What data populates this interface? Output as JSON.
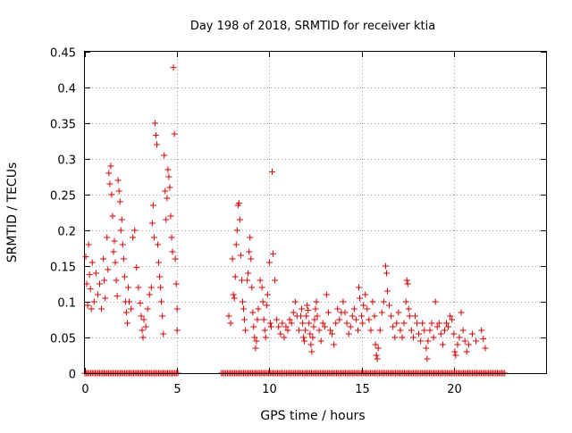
{
  "chart_data": {
    "type": "scatter",
    "title": "Day 198 of 2018, SRMTID for receiver ktia",
    "xlabel": "GPS time / hours",
    "ylabel": "SRMTID / TECUs",
    "xlim": [
      0,
      25
    ],
    "ylim": [
      0,
      0.45
    ],
    "xticks": [
      0,
      5,
      10,
      15,
      20
    ],
    "xtick_labels": [
      "0",
      "5",
      "10",
      "15",
      "20"
    ],
    "yticks": [
      0,
      0.05,
      0.1,
      0.15,
      0.2,
      0.25,
      0.3,
      0.35,
      0.4,
      0.45
    ],
    "ytick_labels": [
      "0",
      "0.05",
      "0.1",
      "0.15",
      "0.2",
      "0.25",
      "0.3",
      "0.35",
      "0.4",
      "0.45"
    ],
    "grid": true,
    "marker": "+",
    "color": "#dd0000",
    "series": [
      {
        "name": "SRMTID",
        "points": [
          [
            0.05,
            0.163
          ],
          [
            0.1,
            0.125
          ],
          [
            0.15,
            0.095
          ],
          [
            0.2,
            0.18
          ],
          [
            0.25,
            0.138
          ],
          [
            0.3,
            0.118
          ],
          [
            0.35,
            0.09
          ],
          [
            0.4,
            0.155
          ],
          [
            0.5,
            0.1
          ],
          [
            0.6,
            0.14
          ],
          [
            0.7,
            0.11
          ],
          [
            0.8,
            0.125
          ],
          [
            0.9,
            0.09
          ],
          [
            1.0,
            0.16
          ],
          [
            1.05,
            0.13
          ],
          [
            1.1,
            0.105
          ],
          [
            1.2,
            0.19
          ],
          [
            1.25,
            0.145
          ],
          [
            1.3,
            0.28
          ],
          [
            1.35,
            0.265
          ],
          [
            1.4,
            0.29
          ],
          [
            1.45,
            0.25
          ],
          [
            1.5,
            0.22
          ],
          [
            1.55,
            0.17
          ],
          [
            1.6,
            0.185
          ],
          [
            1.65,
            0.155
          ],
          [
            1.7,
            0.13
          ],
          [
            1.75,
            0.108
          ],
          [
            1.8,
            0.27
          ],
          [
            1.85,
            0.255
          ],
          [
            1.9,
            0.24
          ],
          [
            1.95,
            0.2
          ],
          [
            2.0,
            0.215
          ],
          [
            2.05,
            0.18
          ],
          [
            2.1,
            0.16
          ],
          [
            2.15,
            0.135
          ],
          [
            2.2,
            0.1
          ],
          [
            2.25,
            0.085
          ],
          [
            2.3,
            0.07
          ],
          [
            2.35,
            0.12
          ],
          [
            2.4,
            0.1
          ],
          [
            2.5,
            0.09
          ],
          [
            2.6,
            0.19
          ],
          [
            2.7,
            0.2
          ],
          [
            2.8,
            0.148
          ],
          [
            2.9,
            0.12
          ],
          [
            3.0,
            0.098
          ],
          [
            3.05,
            0.08
          ],
          [
            3.1,
            0.06
          ],
          [
            3.15,
            0.05
          ],
          [
            3.2,
            0.075
          ],
          [
            3.3,
            0.065
          ],
          [
            3.4,
            0.09
          ],
          [
            3.5,
            0.11
          ],
          [
            3.6,
            0.12
          ],
          [
            3.65,
            0.21
          ],
          [
            3.7,
            0.235
          ],
          [
            3.75,
            0.19
          ],
          [
            3.8,
            0.35
          ],
          [
            3.85,
            0.333
          ],
          [
            3.9,
            0.32
          ],
          [
            3.95,
            0.18
          ],
          [
            4.0,
            0.155
          ],
          [
            4.05,
            0.135
          ],
          [
            4.1,
            0.12
          ],
          [
            4.15,
            0.1
          ],
          [
            4.2,
            0.08
          ],
          [
            4.25,
            0.055
          ],
          [
            4.3,
            0.305
          ],
          [
            4.35,
            0.255
          ],
          [
            4.4,
            0.215
          ],
          [
            4.45,
            0.245
          ],
          [
            4.5,
            0.285
          ],
          [
            4.55,
            0.275
          ],
          [
            4.6,
            0.26
          ],
          [
            4.65,
            0.22
          ],
          [
            4.7,
            0.19
          ],
          [
            4.75,
            0.17
          ],
          [
            4.8,
            0.428
          ],
          [
            4.85,
            0.335
          ],
          [
            4.9,
            0.16
          ],
          [
            4.95,
            0.125
          ],
          [
            5.0,
            0.09
          ],
          [
            5.0,
            0.06
          ],
          [
            7.8,
            0.08
          ],
          [
            7.9,
            0.07
          ],
          [
            8.0,
            0.16
          ],
          [
            8.05,
            0.11
          ],
          [
            8.1,
            0.105
          ],
          [
            8.15,
            0.135
          ],
          [
            8.2,
            0.18
          ],
          [
            8.25,
            0.2
          ],
          [
            8.3,
            0.235
          ],
          [
            8.35,
            0.238
          ],
          [
            8.4,
            0.215
          ],
          [
            8.45,
            0.165
          ],
          [
            8.5,
            0.13
          ],
          [
            8.55,
            0.1
          ],
          [
            8.6,
            0.09
          ],
          [
            8.65,
            0.075
          ],
          [
            8.7,
            0.06
          ],
          [
            8.8,
            0.13
          ],
          [
            8.85,
            0.14
          ],
          [
            8.9,
            0.17
          ],
          [
            8.95,
            0.19
          ],
          [
            9.0,
            0.16
          ],
          [
            9.05,
            0.12
          ],
          [
            9.1,
            0.085
          ],
          [
            9.15,
            0.065
          ],
          [
            9.2,
            0.05
          ],
          [
            9.25,
            0.035
          ],
          [
            9.3,
            0.045
          ],
          [
            9.35,
            0.075
          ],
          [
            9.4,
            0.09
          ],
          [
            9.5,
            0.13
          ],
          [
            9.6,
            0.12
          ],
          [
            9.65,
            0.1
          ],
          [
            9.7,
            0.075
          ],
          [
            9.75,
            0.06
          ],
          [
            9.8,
            0.05
          ],
          [
            9.85,
            0.095
          ],
          [
            9.9,
            0.11
          ],
          [
            10.0,
            0.155
          ],
          [
            10.05,
            0.07
          ],
          [
            10.1,
            0.065
          ],
          [
            10.15,
            0.282
          ],
          [
            10.2,
            0.167
          ],
          [
            10.3,
            0.13
          ],
          [
            10.4,
            0.075
          ],
          [
            10.5,
            0.065
          ],
          [
            10.6,
            0.055
          ],
          [
            10.7,
            0.07
          ],
          [
            10.8,
            0.05
          ],
          [
            10.9,
            0.065
          ],
          [
            11.0,
            0.06
          ],
          [
            11.1,
            0.075
          ],
          [
            11.2,
            0.07
          ],
          [
            11.3,
            0.085
          ],
          [
            11.4,
            0.1
          ],
          [
            11.5,
            0.08
          ],
          [
            11.6,
            0.06
          ],
          [
            11.7,
            0.08
          ],
          [
            11.75,
            0.09
          ],
          [
            11.8,
            0.07
          ],
          [
            11.85,
            0.05
          ],
          [
            11.9,
            0.045
          ],
          [
            11.95,
            0.06
          ],
          [
            12.0,
            0.08
          ],
          [
            12.05,
            0.095
          ],
          [
            12.1,
            0.088
          ],
          [
            12.15,
            0.07
          ],
          [
            12.2,
            0.055
          ],
          [
            12.25,
            0.04
          ],
          [
            12.3,
            0.03
          ],
          [
            12.35,
            0.05
          ],
          [
            12.4,
            0.065
          ],
          [
            12.45,
            0.075
          ],
          [
            12.5,
            0.09
          ],
          [
            12.55,
            0.1
          ],
          [
            12.6,
            0.08
          ],
          [
            12.7,
            0.06
          ],
          [
            12.8,
            0.045
          ],
          [
            12.9,
            0.07
          ],
          [
            13.0,
            0.065
          ],
          [
            13.1,
            0.11
          ],
          [
            13.2,
            0.085
          ],
          [
            13.3,
            0.06
          ],
          [
            13.4,
            0.055
          ],
          [
            13.5,
            0.04
          ],
          [
            13.6,
            0.07
          ],
          [
            13.7,
            0.09
          ],
          [
            13.8,
            0.075
          ],
          [
            13.9,
            0.085
          ],
          [
            14.0,
            0.1
          ],
          [
            14.1,
            0.085
          ],
          [
            14.2,
            0.07
          ],
          [
            14.3,
            0.055
          ],
          [
            14.4,
            0.065
          ],
          [
            14.5,
            0.08
          ],
          [
            14.6,
            0.09
          ],
          [
            14.7,
            0.075
          ],
          [
            14.8,
            0.06
          ],
          [
            14.85,
            0.12
          ],
          [
            14.9,
            0.105
          ],
          [
            15.0,
            0.08
          ],
          [
            15.05,
            0.07
          ],
          [
            15.1,
            0.095
          ],
          [
            15.2,
            0.11
          ],
          [
            15.3,
            0.09
          ],
          [
            15.4,
            0.075
          ],
          [
            15.5,
            0.06
          ],
          [
            15.6,
            0.1
          ],
          [
            15.7,
            0.08
          ],
          [
            15.75,
            0.04
          ],
          [
            15.8,
            0.025
          ],
          [
            15.85,
            0.02
          ],
          [
            15.9,
            0.035
          ],
          [
            16.0,
            0.06
          ],
          [
            16.1,
            0.085
          ],
          [
            16.2,
            0.1
          ],
          [
            16.3,
            0.15
          ],
          [
            16.35,
            0.14
          ],
          [
            16.4,
            0.115
          ],
          [
            16.5,
            0.095
          ],
          [
            16.6,
            0.08
          ],
          [
            16.7,
            0.065
          ],
          [
            16.8,
            0.05
          ],
          [
            16.9,
            0.07
          ],
          [
            17.0,
            0.085
          ],
          [
            17.1,
            0.06
          ],
          [
            17.2,
            0.05
          ],
          [
            17.3,
            0.07
          ],
          [
            17.4,
            0.1
          ],
          [
            17.45,
            0.13
          ],
          [
            17.5,
            0.125
          ],
          [
            17.55,
            0.09
          ],
          [
            17.6,
            0.08
          ],
          [
            17.7,
            0.06
          ],
          [
            17.8,
            0.05
          ],
          [
            17.9,
            0.08
          ],
          [
            18.0,
            0.07
          ],
          [
            18.1,
            0.055
          ],
          [
            18.2,
            0.045
          ],
          [
            18.3,
            0.07
          ],
          [
            18.4,
            0.06
          ],
          [
            18.5,
            0.035
          ],
          [
            18.55,
            0.02
          ],
          [
            18.6,
            0.045
          ],
          [
            18.7,
            0.06
          ],
          [
            18.8,
            0.07
          ],
          [
            18.9,
            0.05
          ],
          [
            19.0,
            0.1
          ],
          [
            19.1,
            0.065
          ],
          [
            19.2,
            0.07
          ],
          [
            19.3,
            0.055
          ],
          [
            19.4,
            0.04
          ],
          [
            19.5,
            0.06
          ],
          [
            19.6,
            0.07
          ],
          [
            19.7,
            0.065
          ],
          [
            19.8,
            0.08
          ],
          [
            19.9,
            0.075
          ],
          [
            20.0,
            0.055
          ],
          [
            20.05,
            0.03
          ],
          [
            20.1,
            0.025
          ],
          [
            20.2,
            0.04
          ],
          [
            20.3,
            0.05
          ],
          [
            20.4,
            0.085
          ],
          [
            20.5,
            0.06
          ],
          [
            20.6,
            0.045
          ],
          [
            20.7,
            0.03
          ],
          [
            20.8,
            0.04
          ],
          [
            21.0,
            0.055
          ],
          [
            21.2,
            0.045
          ],
          [
            21.5,
            0.06
          ],
          [
            21.6,
            0.048
          ],
          [
            21.7,
            0.035
          ]
        ]
      }
    ],
    "zero_band": {
      "value": 0,
      "ranges": [
        [
          0,
          5.1
        ],
        [
          7.4,
          22.8
        ]
      ],
      "step": 0.08
    }
  }
}
